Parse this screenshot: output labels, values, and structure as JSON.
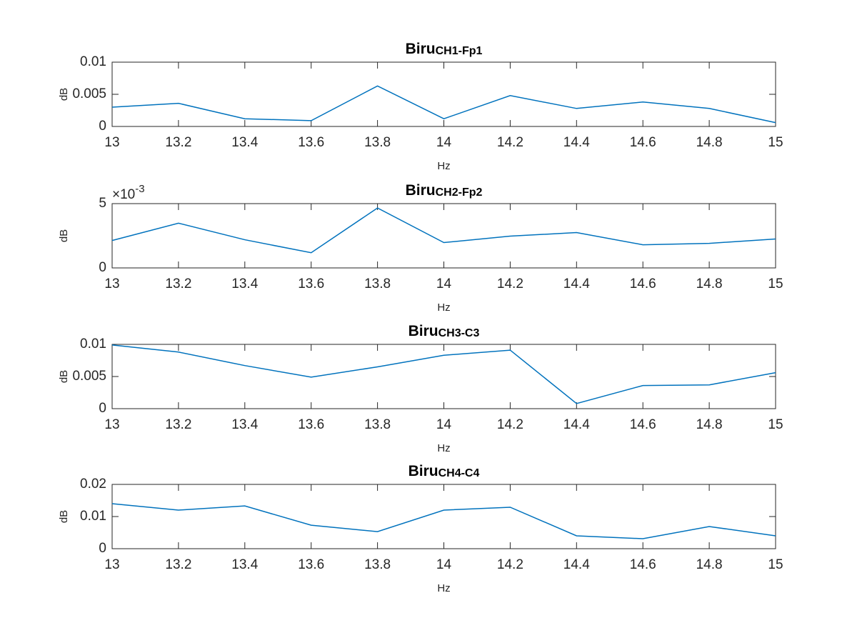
{
  "chart_data": [
    {
      "type": "line",
      "title": {
        "main": "Biru",
        "sub": "CH1-Fp1"
      },
      "xlabel": "Hz",
      "ylabel": "dB",
      "x": [
        13,
        13.2,
        13.4,
        13.6,
        13.8,
        14,
        14.2,
        14.4,
        14.6,
        14.8,
        15
      ],
      "series": [
        {
          "color": "#0072bd",
          "values": [
            0.003,
            0.0036,
            0.0012,
            0.0009,
            0.0063,
            0.0012,
            0.0048,
            0.0028,
            0.0038,
            0.0028,
            0.0006
          ]
        }
      ],
      "xlim": [
        13,
        15
      ],
      "xticks": [
        13,
        13.2,
        13.4,
        13.6,
        13.8,
        14,
        14.2,
        14.4,
        14.6,
        14.8,
        15
      ],
      "ylim": [
        0,
        0.01
      ],
      "yticks": [
        0,
        0.005,
        0.01
      ]
    },
    {
      "type": "line",
      "title": {
        "main": "Biru",
        "sub": "CH2-Fp2"
      },
      "xlabel": "Hz",
      "ylabel": "dB",
      "y_multiplier": {
        "base": "×10",
        "power": "-3"
      },
      "x": [
        13,
        13.2,
        13.4,
        13.6,
        13.8,
        14,
        14.2,
        14.4,
        14.6,
        14.8,
        15
      ],
      "series": [
        {
          "color": "#0072bd",
          "values": [
            0.00213,
            0.00348,
            0.00219,
            0.00118,
            0.00466,
            0.00197,
            0.00247,
            0.00275,
            0.0018,
            0.00191,
            0.00225
          ]
        }
      ],
      "xlim": [
        13,
        15
      ],
      "xticks": [
        13,
        13.2,
        13.4,
        13.6,
        13.8,
        14,
        14.2,
        14.4,
        14.6,
        14.8,
        15
      ],
      "ylim": [
        0,
        0.005
      ],
      "yticks": [
        0,
        {
          "value": 0.005,
          "label": "5"
        }
      ]
    },
    {
      "type": "line",
      "title": {
        "main": "Biru",
        "sub": "CH3-C3"
      },
      "xlabel": "Hz",
      "ylabel": "dB",
      "x": [
        13,
        13.2,
        13.4,
        13.6,
        13.8,
        14,
        14.2,
        14.4,
        14.6,
        14.8,
        15
      ],
      "series": [
        {
          "color": "#0072bd",
          "values": [
            0.0099,
            0.0088,
            0.0067,
            0.0049,
            0.0065,
            0.0083,
            0.0091,
            0.0008,
            0.0036,
            0.0037,
            0.0056
          ]
        }
      ],
      "xlim": [
        13,
        15
      ],
      "xticks": [
        13,
        13.2,
        13.4,
        13.6,
        13.8,
        14,
        14.2,
        14.4,
        14.6,
        14.8,
        15
      ],
      "ylim": [
        0,
        0.01
      ],
      "yticks": [
        0,
        0.005,
        0.01
      ]
    },
    {
      "type": "line",
      "title": {
        "main": "Biru",
        "sub": "CH4-C4"
      },
      "xlabel": "Hz",
      "ylabel": "dB",
      "x": [
        13,
        13.2,
        13.4,
        13.6,
        13.8,
        14,
        14.2,
        14.4,
        14.6,
        14.8,
        15
      ],
      "series": [
        {
          "color": "#0072bd",
          "values": [
            0.014,
            0.012,
            0.0133,
            0.0073,
            0.0053,
            0.012,
            0.0129,
            0.004,
            0.0031,
            0.0069,
            0.004
          ]
        }
      ],
      "xlim": [
        13,
        15
      ],
      "xticks": [
        13,
        13.2,
        13.4,
        13.6,
        13.8,
        14,
        14.2,
        14.4,
        14.6,
        14.8,
        15
      ],
      "ylim": [
        0,
        0.02
      ],
      "yticks": [
        0,
        0.01,
        0.02
      ]
    }
  ]
}
